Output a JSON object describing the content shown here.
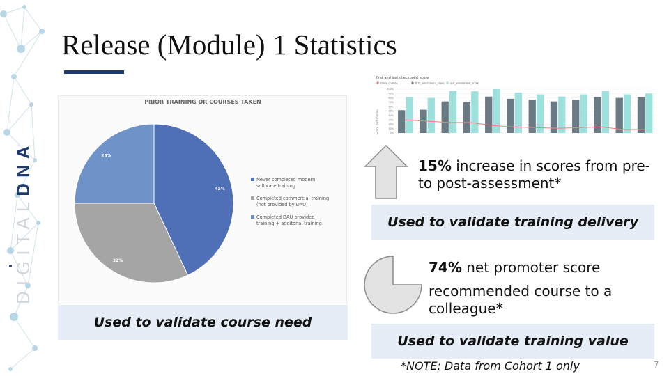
{
  "slide": {
    "title": "Release (Module) 1 Statistics",
    "page_number": "7",
    "brand_text": "DIGITAL DNA",
    "accent_color": "#1f3a6e",
    "caption_bg": "#e6edf6"
  },
  "pie_chart": {
    "chart_data": {
      "type": "pie",
      "title": "PRIOR TRAINING OR COURSES TAKEN",
      "slices": [
        {
          "label": "Never completed modern software training",
          "value": 43,
          "value_label": "43%",
          "color": "#4f6fb6"
        },
        {
          "label": "Completed commercial training (not provided by DAU)",
          "value": 32,
          "value_label": "32%",
          "color": "#a5a5a5"
        },
        {
          "label": "Completed DAU provided training + additonal training",
          "value": 25,
          "value_label": "25%",
          "color": "#6f93c8"
        }
      ],
      "legend_position": "right"
    },
    "legend_lines": [
      [
        "Never completed modern",
        "software training"
      ],
      [
        "Completed commercial training",
        "(not provided by DAU)"
      ],
      [
        "Completed DAU provided",
        "training + additonal training"
      ]
    ],
    "caption": "Used to validate course need"
  },
  "bar_chart": {
    "chart_data": {
      "type": "bar",
      "title": "first and last checkpoint score",
      "legend": [
        "score_change",
        "first_assessment_score",
        "last_assessment_score"
      ],
      "colors": {
        "score_change": "#f08080",
        "first_assessment_score": "#6b7b85",
        "last_assessment_score": "#9ee0dc"
      },
      "ylabel": "Score Distribution",
      "y_ticks": [
        "100%",
        "90%",
        "80%",
        "70%",
        "60%",
        "50%",
        "40%",
        "30%",
        "20%",
        "10%",
        "0%"
      ],
      "ylim": [
        0,
        100
      ],
      "series": [
        {
          "name": "first_assessment_score",
          "values": [
            52,
            53,
            72,
            71,
            83,
            78,
            76,
            72,
            76,
            82,
            80,
            82
          ]
        },
        {
          "name": "last_assessment_score",
          "values": [
            82,
            80,
            96,
            95,
            100,
            92,
            88,
            83,
            88,
            96,
            88,
            90
          ]
        },
        {
          "name": "score_change",
          "values": [
            30,
            27,
            24,
            24,
            17,
            14,
            12,
            11,
            12,
            14,
            8,
            8
          ]
        }
      ]
    }
  },
  "stat_training_delivery": {
    "highlight": "15%",
    "text_rest": " increase in scores from pre- to post-assessment*",
    "caption": "Used to validate training delivery"
  },
  "stat_training_value": {
    "highlight": "74%",
    "line1_rest": " net promoter score",
    "line2": "recommended course to a colleague*",
    "caption": "Used to validate training value"
  },
  "note": "*NOTE: Data from Cohort 1 only"
}
